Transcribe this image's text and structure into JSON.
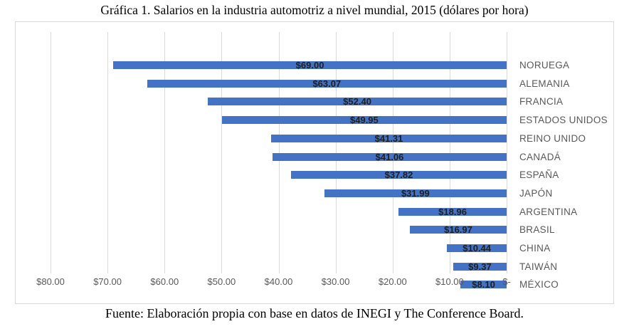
{
  "chart_data": {
    "type": "bar",
    "orientation": "horizontal",
    "axis_reversed": true,
    "title": "Gráfica 1. Salarios en la industria automotriz a nivel mundial, 2015 (dólares por hora)",
    "categories": [
      "NORUEGA",
      "ALEMANIA",
      "FRANCIA",
      "ESTADOS UNIDOS",
      "REINO UNIDO",
      "CANADÁ",
      "ESPAÑA",
      "JAPÓN",
      "ARGENTINA",
      "BRASIL",
      "CHINA",
      "TAIWÁN",
      "MÉXICO"
    ],
    "values": [
      69.0,
      63.07,
      52.4,
      49.95,
      41.31,
      41.06,
      37.82,
      31.99,
      18.96,
      16.97,
      10.44,
      9.37,
      8.1
    ],
    "data_labels": [
      "$69.00",
      "$63.07",
      "$52.40",
      "$49.95",
      "$41.31",
      "$41.06",
      "$37.82",
      "$31.99",
      "$18.96",
      "$16.97",
      "$10.44",
      "$9.37",
      "$8.10"
    ],
    "x_tick_labels": [
      "$80.00",
      "$70.00",
      "$60.00",
      "$50.00",
      "$40.00",
      "$30.00",
      "$20.00",
      "$10.00",
      "$-"
    ],
    "x_tick_values": [
      80,
      70,
      60,
      50,
      40,
      30,
      20,
      10,
      0
    ],
    "xlim": [
      80,
      0
    ],
    "grid": true,
    "legend": "none",
    "colors": {
      "bar": "#4472C4",
      "gridline": "#D9D9D9",
      "frame_border": "#D9D9D9",
      "axis_text": "#595959",
      "data_label_text": "#1F1F1F"
    }
  },
  "footer": {
    "text": "Fuente: Elaboración propia con base en datos de INEGI y The Conference Board."
  }
}
